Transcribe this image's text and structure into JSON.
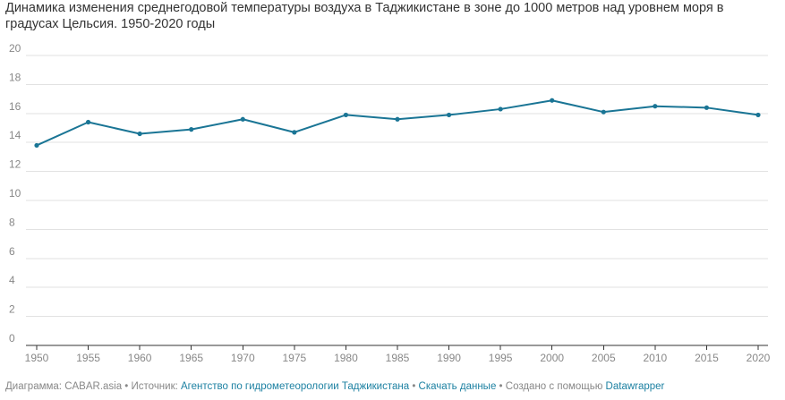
{
  "title": "Динамика изменения среднегодовой температуры воздуха в Таджикистане в зоне до 1000 метров над уровнем моря в градусах Цельсия. 1950-2020 годы",
  "footer": {
    "prefix": "Диаграмма: CABAR.asia • Источник: ",
    "source_link": "Агентство по гидрометеорологии Таджикистана",
    "sep": " • ",
    "download_link": "Скачать данные",
    "created_with": " • Создано с помощью ",
    "tool_link": "Datawrapper"
  },
  "colors": {
    "line": "#1a7595",
    "grid": "#e2e2e2",
    "axis": "#333333",
    "tick_text": "#888888",
    "link": "#1d81a2"
  },
  "chart_data": {
    "type": "line",
    "x": [
      1950,
      1955,
      1960,
      1965,
      1970,
      1975,
      1980,
      1985,
      1990,
      1995,
      2000,
      2005,
      2010,
      2015,
      2020
    ],
    "series": [
      {
        "values": [
          13.8,
          15.4,
          14.6,
          14.9,
          15.6,
          14.7,
          15.9,
          15.6,
          15.9,
          16.3,
          16.9,
          16.1,
          16.5,
          16.4,
          15.9
        ]
      }
    ],
    "xticks": [
      "1950",
      "1955",
      "1960",
      "1965",
      "1970",
      "1975",
      "1980",
      "1985",
      "1990",
      "1995",
      "2000",
      "2005",
      "2010",
      "2015",
      "2020"
    ],
    "yticks": [
      "0",
      "2",
      "4",
      "6",
      "8",
      "10",
      "12",
      "14",
      "16",
      "18",
      "20"
    ],
    "xlim": [
      1950,
      2020
    ],
    "ylim": [
      0,
      20
    ],
    "grid": true,
    "legend": "none"
  }
}
